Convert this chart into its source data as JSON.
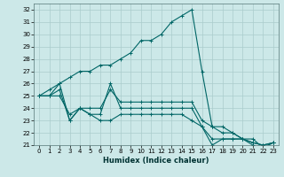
{
  "title": "",
  "xlabel": "Humidex (Indice chaleur)",
  "background_color": "#cce8e8",
  "grid_color": "#aacccc",
  "line_color": "#006666",
  "xlim": [
    -0.5,
    23.5
  ],
  "ylim": [
    21,
    32.5
  ],
  "yticks": [
    21,
    22,
    23,
    24,
    25,
    26,
    27,
    28,
    29,
    30,
    31,
    32
  ],
  "xticks": [
    0,
    1,
    2,
    3,
    4,
    5,
    6,
    7,
    8,
    9,
    10,
    11,
    12,
    13,
    14,
    15,
    16,
    17,
    18,
    19,
    20,
    21,
    22,
    23
  ],
  "lines": [
    [
      25.0,
      25.5,
      26.0,
      26.5,
      27.0,
      27.0,
      27.5,
      27.5,
      28.0,
      28.5,
      29.5,
      29.5,
      30.0,
      31.0,
      31.5,
      32.0,
      27.0,
      22.5,
      22.5,
      22.0,
      21.5,
      21.2,
      21.0,
      21.2
    ],
    [
      25.0,
      25.0,
      26.0,
      23.0,
      24.0,
      24.0,
      24.0,
      25.5,
      24.5,
      24.5,
      24.5,
      24.5,
      24.5,
      24.5,
      24.5,
      24.5,
      23.0,
      22.5,
      22.0,
      22.0,
      21.5,
      21.2,
      21.0,
      21.2
    ],
    [
      25.0,
      25.0,
      25.5,
      23.0,
      24.0,
      23.5,
      23.5,
      26.0,
      24.0,
      24.0,
      24.0,
      24.0,
      24.0,
      24.0,
      24.0,
      24.0,
      22.5,
      21.5,
      21.5,
      21.5,
      21.5,
      21.0,
      20.8,
      21.2
    ],
    [
      25.0,
      25.0,
      25.0,
      23.5,
      24.0,
      23.5,
      23.0,
      23.0,
      23.5,
      23.5,
      23.5,
      23.5,
      23.5,
      23.5,
      23.5,
      23.0,
      22.5,
      21.0,
      21.5,
      21.5,
      21.5,
      21.5,
      20.8,
      21.2
    ]
  ]
}
